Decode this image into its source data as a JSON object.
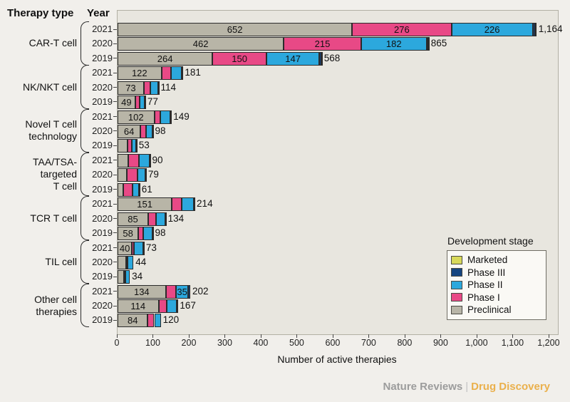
{
  "header": {
    "therapy_type": "Therapy type",
    "year": "Year"
  },
  "axis": {
    "label": "Number of active therapies",
    "max": 1224,
    "ticks": [
      {
        "value": 0,
        "label": "0"
      },
      {
        "value": 100,
        "label": "100"
      },
      {
        "value": 200,
        "label": "200"
      },
      {
        "value": 300,
        "label": "300"
      },
      {
        "value": 400,
        "label": "400"
      },
      {
        "value": 500,
        "label": "500"
      },
      {
        "value": 600,
        "label": "600"
      },
      {
        "value": 700,
        "label": "700"
      },
      {
        "value": 800,
        "label": "800"
      },
      {
        "value": 900,
        "label": "900"
      },
      {
        "value": 1000,
        "label": "1,000"
      },
      {
        "value": 1100,
        "label": "1,100"
      },
      {
        "value": 1200,
        "label": "1,200"
      }
    ]
  },
  "legend": {
    "title": "Development stage",
    "items": [
      {
        "label": "Marketed",
        "stage": "marketed",
        "color": "#d8d95a"
      },
      {
        "label": "Phase III",
        "stage": "phase3",
        "color": "#154580"
      },
      {
        "label": "Phase II",
        "stage": "phase2",
        "color": "#2ca8dd"
      },
      {
        "label": "Phase I",
        "stage": "phase1",
        "color": "#e84986"
      },
      {
        "label": "Preclinical",
        "stage": "preclinical",
        "color": "#b8b5a7"
      }
    ]
  },
  "footer": {
    "brand": "Nature Reviews",
    "separator": "|",
    "publication": "Drug Discovery"
  },
  "chart_data": {
    "type": "bar",
    "orientation": "horizontal",
    "stacked": true,
    "title": "",
    "xlabel": "Number of active therapies",
    "xlim": [
      0,
      1224
    ],
    "grid": false,
    "legend_position": "lower right",
    "stage_order": [
      "preclinical",
      "phase1",
      "phase2",
      "phase3",
      "marketed"
    ],
    "stage_colors": {
      "preclinical": "#b8b5a7",
      "phase1": "#e84986",
      "phase2": "#2ca8dd",
      "phase3": "#154580",
      "marketed": "#d8d95a"
    },
    "groups": [
      {
        "therapy": "CAR-T cell",
        "label_lines": [
          "CAR-T cell"
        ],
        "rows": [
          {
            "year": "2021",
            "values": {
              "preclinical": 652,
              "phase1": 276,
              "phase2": 226,
              "phase3": 6,
              "marketed": 4
            },
            "segment_labels": {
              "preclinical": "652",
              "phase1": "276",
              "phase2": "226"
            },
            "total": 1164,
            "total_label": "1,164"
          },
          {
            "year": "2020",
            "values": {
              "preclinical": 462,
              "phase1": 215,
              "phase2": 182,
              "phase3": 4,
              "marketed": 2
            },
            "segment_labels": {
              "preclinical": "462",
              "phase1": "215",
              "phase2": "182"
            },
            "total": 865,
            "total_label": "865"
          },
          {
            "year": "2019",
            "values": {
              "preclinical": 264,
              "phase1": 150,
              "phase2": 147,
              "phase3": 5,
              "marketed": 2
            },
            "segment_labels": {
              "preclinical": "264",
              "phase1": "150",
              "phase2": "147"
            },
            "total": 568,
            "total_label": "568"
          }
        ]
      },
      {
        "therapy": "NK/NKT cell",
        "label_lines": [
          "NK/NKT cell"
        ],
        "rows": [
          {
            "year": "2021",
            "values": {
              "preclinical": 122,
              "phase1": 27,
              "phase2": 30,
              "phase3": 2,
              "marketed": 0
            },
            "segment_labels": {
              "preclinical": "122"
            },
            "total": 181,
            "total_label": "181"
          },
          {
            "year": "2020",
            "values": {
              "preclinical": 73,
              "phase1": 19,
              "phase2": 20,
              "phase3": 2,
              "marketed": 0
            },
            "segment_labels": {
              "preclinical": "73"
            },
            "total": 114,
            "total_label": "114"
          },
          {
            "year": "2019",
            "values": {
              "preclinical": 49,
              "phase1": 13,
              "phase2": 14,
              "phase3": 1,
              "marketed": 0
            },
            "segment_labels": {
              "preclinical": "49"
            },
            "total": 77,
            "total_label": "77"
          }
        ]
      },
      {
        "therapy": "Novel T cell technology",
        "label_lines": [
          "Novel T cell",
          "technology"
        ],
        "rows": [
          {
            "year": "2021",
            "values": {
              "preclinical": 102,
              "phase1": 16,
              "phase2": 28,
              "phase3": 3,
              "marketed": 0
            },
            "segment_labels": {
              "preclinical": "102"
            },
            "total": 149,
            "total_label": "149"
          },
          {
            "year": "2020",
            "values": {
              "preclinical": 64,
              "phase1": 16,
              "phase2": 17,
              "phase3": 1,
              "marketed": 0
            },
            "segment_labels": {
              "preclinical": "64"
            },
            "total": 98,
            "total_label": "98"
          },
          {
            "year": "2019",
            "values": {
              "preclinical": 27,
              "phase1": 12,
              "phase2": 13,
              "phase3": 1,
              "marketed": 0
            },
            "segment_labels": {},
            "total": 53,
            "total_label": "53"
          }
        ]
      },
      {
        "therapy": "TAA/TSA-targeted T cell",
        "label_lines": [
          "TAA/TSA-",
          "targeted",
          "T cell"
        ],
        "rows": [
          {
            "year": "2021",
            "values": {
              "preclinical": 30,
              "phase1": 30,
              "phase2": 29,
              "phase3": 1,
              "marketed": 0
            },
            "segment_labels": {},
            "total": 90,
            "total_label": "90"
          },
          {
            "year": "2020",
            "values": {
              "preclinical": 26,
              "phase1": 30,
              "phase2": 22,
              "phase3": 1,
              "marketed": 0
            },
            "segment_labels": {},
            "total": 79,
            "total_label": "79"
          },
          {
            "year": "2019",
            "values": {
              "preclinical": 16,
              "phase1": 25,
              "phase2": 19,
              "phase3": 1,
              "marketed": 0
            },
            "segment_labels": {},
            "total": 61,
            "total_label": "61"
          }
        ]
      },
      {
        "therapy": "TCR T cell",
        "label_lines": [
          "TCR T cell"
        ],
        "rows": [
          {
            "year": "2021",
            "values": {
              "preclinical": 151,
              "phase1": 27,
              "phase2": 34,
              "phase3": 2,
              "marketed": 0
            },
            "segment_labels": {
              "preclinical": "151"
            },
            "total": 214,
            "total_label": "214"
          },
          {
            "year": "2020",
            "values": {
              "preclinical": 85,
              "phase1": 21,
              "phase2": 27,
              "phase3": 1,
              "marketed": 0
            },
            "segment_labels": {
              "preclinical": "85"
            },
            "total": 134,
            "total_label": "134"
          },
          {
            "year": "2019",
            "values": {
              "preclinical": 58,
              "phase1": 14,
              "phase2": 25,
              "phase3": 1,
              "marketed": 0
            },
            "segment_labels": {
              "preclinical": "58"
            },
            "total": 98,
            "total_label": "98"
          }
        ]
      },
      {
        "therapy": "TIL cell",
        "label_lines": [
          "TIL cell"
        ],
        "rows": [
          {
            "year": "2021",
            "values": {
              "preclinical": 40,
              "phase1": 6,
              "phase2": 26,
              "phase3": 1,
              "marketed": 0
            },
            "segment_labels": {
              "preclinical": "40"
            },
            "total": 73,
            "total_label": "73"
          },
          {
            "year": "2020",
            "values": {
              "preclinical": 24,
              "phase1": 3,
              "phase2": 17,
              "phase3": 0,
              "marketed": 0
            },
            "segment_labels": {},
            "total": 44,
            "total_label": "44"
          },
          {
            "year": "2019",
            "values": {
              "preclinical": 18,
              "phase1": 4,
              "phase2": 12,
              "phase3": 0,
              "marketed": 0
            },
            "segment_labels": {},
            "total": 34,
            "total_label": "34"
          }
        ]
      },
      {
        "therapy": "Other cell therapies",
        "label_lines": [
          "Other cell",
          "therapies"
        ],
        "rows": [
          {
            "year": "2021",
            "values": {
              "preclinical": 134,
              "phase1": 28,
              "phase2": 35,
              "phase3": 5,
              "marketed": 0
            },
            "segment_labels": {
              "preclinical": "134",
              "phase2": "35"
            },
            "total": 202,
            "total_label": "202"
          },
          {
            "year": "2020",
            "values": {
              "preclinical": 114,
              "phase1": 22,
              "phase2": 28,
              "phase3": 3,
              "marketed": 0
            },
            "segment_labels": {
              "preclinical": "114"
            },
            "total": 167,
            "total_label": "167"
          },
          {
            "year": "2019",
            "values": {
              "preclinical": 84,
              "phase1": 18,
              "phase2": 18,
              "phase3": 0,
              "marketed": 0
            },
            "segment_labels": {
              "preclinical": "84"
            },
            "total": 120,
            "total_label": "120"
          }
        ]
      }
    ]
  }
}
